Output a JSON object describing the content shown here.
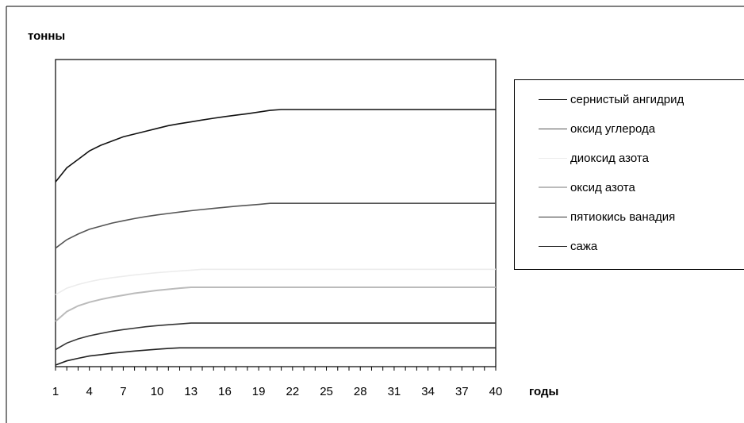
{
  "chart_data": {
    "type": "line",
    "ylabel": "тонны",
    "xlabel": "годы",
    "x": [
      1,
      2,
      3,
      4,
      5,
      6,
      7,
      8,
      9,
      10,
      11,
      12,
      13,
      14,
      15,
      16,
      17,
      18,
      19,
      20,
      21,
      22,
      23,
      24,
      25,
      26,
      27,
      28,
      29,
      30,
      31,
      32,
      33,
      34,
      35,
      36,
      37,
      38,
      39,
      40
    ],
    "x_tick_labels": [
      "1",
      "4",
      "7",
      "10",
      "13",
      "16",
      "19",
      "22",
      "25",
      "28",
      "31",
      "34",
      "37",
      "40"
    ],
    "ylim": [
      0,
      100
    ],
    "grid": false,
    "legend": "right",
    "series": [
      {
        "name": "сернистый ангидрид",
        "color": "#111111",
        "width": 1.6,
        "values": [
          65,
          70,
          73,
          76,
          78,
          79.5,
          81,
          82,
          83,
          84,
          85,
          85.7,
          86.3,
          87,
          87.6,
          88.2,
          88.7,
          89.2,
          89.8,
          90.4,
          90.7,
          90.7,
          90.7,
          90.7,
          90.7,
          90.7,
          90.7,
          90.7,
          90.7,
          90.7,
          90.7,
          90.7,
          90.7,
          90.7,
          90.7,
          90.7,
          90.7,
          90.7,
          90.7,
          90.7
        ]
      },
      {
        "name": "оксид углерода",
        "color": "#555555",
        "width": 1.6,
        "values": [
          41.5,
          44.5,
          46.5,
          48.2,
          49.3,
          50.4,
          51.2,
          52,
          52.7,
          53.3,
          53.8,
          54.3,
          54.8,
          55.2,
          55.6,
          56,
          56.4,
          56.7,
          57,
          57.4,
          57.4,
          57.4,
          57.4,
          57.4,
          57.4,
          57.4,
          57.4,
          57.4,
          57.4,
          57.4,
          57.4,
          57.4,
          57.4,
          57.4,
          57.4,
          57.4,
          57.4,
          57.4,
          57.4,
          57.4
        ]
      },
      {
        "name": "диоксид азота",
        "color": "#ececec",
        "width": 1.6,
        "values": [
          25,
          27.3,
          28.6,
          29.6,
          30.4,
          31,
          31.5,
          32,
          32.4,
          32.8,
          33.1,
          33.4,
          33.7,
          34,
          34,
          34,
          34,
          34,
          34,
          34,
          34,
          34,
          34,
          34,
          34,
          34,
          34,
          34,
          34,
          34,
          34,
          34,
          34,
          34,
          34,
          34,
          34,
          34,
          34,
          34
        ]
      },
      {
        "name": "оксид азота",
        "color": "#bbbbbb",
        "width": 2,
        "values": [
          15.5,
          19,
          21,
          22.3,
          23.3,
          24.1,
          24.8,
          25.5,
          26,
          26.5,
          26.9,
          27.3,
          27.6,
          27.6,
          27.6,
          27.6,
          27.6,
          27.6,
          27.6,
          27.6,
          27.6,
          27.6,
          27.6,
          27.6,
          27.6,
          27.6,
          27.6,
          27.6,
          27.6,
          27.6,
          27.6,
          27.6,
          27.6,
          27.6,
          27.6,
          27.6,
          27.6,
          27.6,
          27.6,
          27.6
        ]
      },
      {
        "name": "пятиокись ванадия",
        "color": "#333333",
        "width": 1.6,
        "values": [
          5.5,
          7.8,
          9.3,
          10.4,
          11.2,
          12,
          12.6,
          13.1,
          13.6,
          14,
          14.3,
          14.6,
          14.9,
          14.9,
          14.9,
          14.9,
          14.9,
          14.9,
          14.9,
          14.9,
          14.9,
          14.9,
          14.9,
          14.9,
          14.9,
          14.9,
          14.9,
          14.9,
          14.9,
          14.9,
          14.9,
          14.9,
          14.9,
          14.9,
          14.9,
          14.9,
          14.9,
          14.9,
          14.9,
          14.9
        ]
      },
      {
        "name": "сажа",
        "color": "#222222",
        "width": 1.6,
        "values": [
          0,
          1.5,
          2.4,
          3.2,
          3.7,
          4.2,
          4.6,
          5,
          5.3,
          5.6,
          5.9,
          6.1,
          6.1,
          6.1,
          6.1,
          6.1,
          6.1,
          6.1,
          6.1,
          6.1,
          6.1,
          6.1,
          6.1,
          6.1,
          6.1,
          6.1,
          6.1,
          6.1,
          6.1,
          6.1,
          6.1,
          6.1,
          6.1,
          6.1,
          6.1,
          6.1,
          6.1,
          6.1,
          6.1,
          6.1
        ]
      }
    ]
  }
}
